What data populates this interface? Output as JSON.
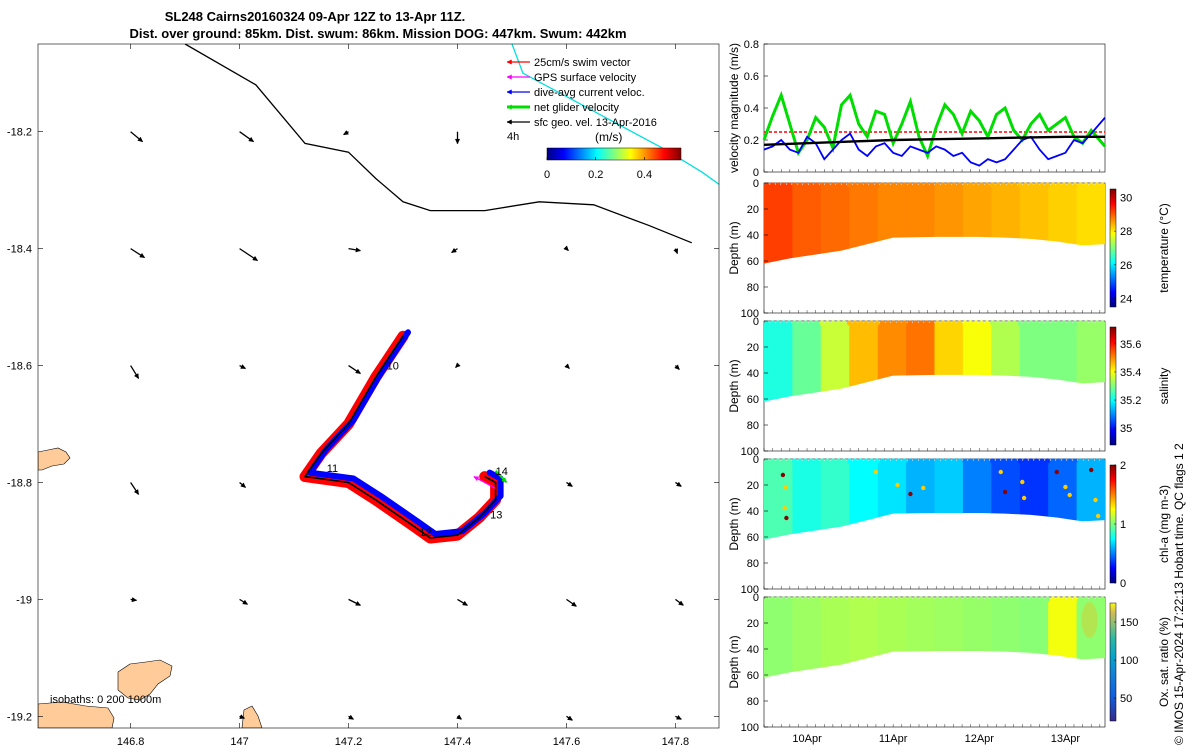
{
  "title": {
    "line1": "SL248 Cairns20160324 09-Apr 12Z to 13-Apr 11Z.",
    "line2": "Dist. over ground: 85km. Dist. swum: 86km. Mission DOG: 447km. Swum: 442km"
  },
  "footer_note": "© IMOS 15-Apr-2024 17:22:13 Hobart time. QC flags 1  2",
  "colors": {
    "swim": "#ff0000",
    "gps": "#ff00ff",
    "dive_avg": "#0000ff",
    "net": "#00dd00",
    "sfc": "#000000",
    "coast_fill": "#ffcc99",
    "iso0": "#000000",
    "iso1000": "#00e0e0"
  },
  "map": {
    "legend": [
      {
        "label": "25cm/s swim vector",
        "color": "#ff0000",
        "icon": "red-arrow-icon"
      },
      {
        "label": "GPS surface velocity",
        "color": "#ff00ff",
        "icon": "magenta-arrow-icon"
      },
      {
        "label": "dive-avg current veloc.",
        "color": "#0000ff",
        "icon": "blue-arrow-icon"
      },
      {
        "label": "net glider velocity",
        "color": "#00dd00",
        "icon": "green-arrow-icon"
      },
      {
        "label": "sfc geo. vel. 13-Apr-2016",
        "color": "#000000",
        "icon": "black-arrow-icon"
      }
    ],
    "legend_extra": "4h",
    "colorbar": {
      "label": "(m/s)",
      "ticks": [
        "0",
        "0.2",
        "0.4"
      ]
    },
    "isobaths_label": "isobaths: 0   200  1000m",
    "xlim": [
      146.63,
      147.88
    ],
    "ylim": [
      -19.22,
      -18.05
    ],
    "xticks": [
      146.8,
      147,
      147.2,
      147.4,
      147.6,
      147.8
    ],
    "xtick_labels": [
      "146.8",
      "147",
      "147.2",
      "147.4",
      "147.6",
      "147.8"
    ],
    "yticks": [
      -18.2,
      -18.4,
      -18.6,
      -18.8,
      -19,
      -19.2
    ],
    "ytick_labels": [
      "-18.2",
      "-18.4",
      "-18.6",
      "-18.8",
      "-19",
      "-19.2"
    ],
    "day_labels": [
      {
        "text": "10",
        "lon": 147.27,
        "lat": -18.6
      },
      {
        "text": "11",
        "lon": 147.16,
        "lat": -18.775
      },
      {
        "text": "12",
        "lon": 147.33,
        "lat": -18.885
      },
      {
        "text": "13",
        "lon": 147.46,
        "lat": -18.855
      },
      {
        "text": "14",
        "lon": 147.47,
        "lat": -18.78
      }
    ],
    "track": [
      [
        147.3,
        -18.55
      ],
      [
        147.25,
        -18.62
      ],
      [
        147.2,
        -18.7
      ],
      [
        147.18,
        -18.72
      ],
      [
        147.15,
        -18.75
      ],
      [
        147.12,
        -18.79
      ],
      [
        147.2,
        -18.8
      ],
      [
        147.25,
        -18.83
      ],
      [
        147.32,
        -18.875
      ],
      [
        147.35,
        -18.895
      ],
      [
        147.4,
        -18.89
      ],
      [
        147.44,
        -18.86
      ],
      [
        147.47,
        -18.83
      ],
      [
        147.47,
        -18.8
      ],
      [
        147.45,
        -18.79
      ]
    ],
    "iso0_contour": [
      [
        146.9,
        -18.05
      ],
      [
        147.03,
        -18.12
      ],
      [
        147.12,
        -18.22
      ],
      [
        147.2,
        -18.235
      ],
      [
        147.25,
        -18.28
      ],
      [
        147.3,
        -18.32
      ],
      [
        147.35,
        -18.335
      ],
      [
        147.45,
        -18.335
      ],
      [
        147.55,
        -18.32
      ],
      [
        147.65,
        -18.325
      ],
      [
        147.75,
        -18.36
      ],
      [
        147.83,
        -18.39
      ]
    ],
    "iso1000_contour": [
      [
        147.5,
        -18.05
      ],
      [
        147.52,
        -18.1
      ],
      [
        147.6,
        -18.14
      ],
      [
        147.7,
        -18.19
      ],
      [
        147.78,
        -18.23
      ],
      [
        147.85,
        -18.27
      ],
      [
        147.88,
        -18.29
      ]
    ],
    "geo_vectors": [
      {
        "lon": 146.8,
        "lat": -18.2,
        "u": 0.12,
        "v": -0.1
      },
      {
        "lon": 147.0,
        "lat": -18.2,
        "u": 0.14,
        "v": -0.1
      },
      {
        "lon": 147.2,
        "lat": -18.2,
        "u": -0.05,
        "v": -0.03
      },
      {
        "lon": 147.4,
        "lat": -18.2,
        "u": 0.0,
        "v": -0.12
      },
      {
        "lon": 146.8,
        "lat": -18.4,
        "u": 0.14,
        "v": -0.09
      },
      {
        "lon": 147.0,
        "lat": -18.4,
        "u": 0.18,
        "v": -0.12
      },
      {
        "lon": 147.2,
        "lat": -18.4,
        "u": 0.12,
        "v": -0.02
      },
      {
        "lon": 147.4,
        "lat": -18.4,
        "u": -0.06,
        "v": -0.04
      },
      {
        "lon": 147.6,
        "lat": -18.4,
        "u": 0.02,
        "v": -0.02
      },
      {
        "lon": 147.8,
        "lat": -18.4,
        "u": 0.02,
        "v": -0.05
      },
      {
        "lon": 146.8,
        "lat": -18.6,
        "u": 0.08,
        "v": -0.13
      },
      {
        "lon": 147.0,
        "lat": -18.6,
        "u": 0.06,
        "v": -0.03
      },
      {
        "lon": 147.2,
        "lat": -18.6,
        "u": 0.12,
        "v": -0.08
      },
      {
        "lon": 147.4,
        "lat": -18.6,
        "u": -0.02,
        "v": -0.02
      },
      {
        "lon": 147.6,
        "lat": -18.6,
        "u": 0.03,
        "v": -0.03
      },
      {
        "lon": 147.8,
        "lat": -18.6,
        "u": 0.04,
        "v": -0.04
      },
      {
        "lon": 146.8,
        "lat": -18.8,
        "u": 0.08,
        "v": -0.12
      },
      {
        "lon": 147.0,
        "lat": -18.8,
        "u": 0.06,
        "v": -0.05
      },
      {
        "lon": 147.2,
        "lat": -18.8,
        "u": 0.04,
        "v": -0.03
      },
      {
        "lon": 147.6,
        "lat": -18.8,
        "u": 0.06,
        "v": -0.04
      },
      {
        "lon": 147.8,
        "lat": -18.8,
        "u": 0.06,
        "v": -0.04
      },
      {
        "lon": 146.8,
        "lat": -19.0,
        "u": 0.06,
        "v": -0.01
      },
      {
        "lon": 147.0,
        "lat": -19.0,
        "u": 0.08,
        "v": -0.05
      },
      {
        "lon": 147.2,
        "lat": -19.0,
        "u": 0.12,
        "v": -0.06
      },
      {
        "lon": 147.4,
        "lat": -19.0,
        "u": 0.1,
        "v": -0.06
      },
      {
        "lon": 147.6,
        "lat": -19.0,
        "u": 0.1,
        "v": -0.07
      },
      {
        "lon": 147.8,
        "lat": -19.0,
        "u": 0.08,
        "v": -0.06
      },
      {
        "lon": 147.0,
        "lat": -19.2,
        "u": 0.05,
        "v": -0.02
      },
      {
        "lon": 147.2,
        "lat": -19.2,
        "u": 0.05,
        "v": -0.03
      },
      {
        "lon": 147.4,
        "lat": -19.2,
        "u": 0.04,
        "v": -0.03
      },
      {
        "lon": 147.6,
        "lat": -19.2,
        "u": 0.06,
        "v": -0.04
      },
      {
        "lon": 147.8,
        "lat": -19.2,
        "u": 0.06,
        "v": -0.03
      }
    ]
  },
  "chart_data": [
    {
      "type": "line",
      "ylabel": "velocity magnitude (m/s)",
      "ylim": [
        0,
        0.8
      ],
      "yticks": [
        "0",
        "0.2",
        "0.4",
        "0.6",
        "0.8"
      ],
      "x_days": [
        9.5,
        13.46
      ],
      "series": [
        {
          "key": "swim",
          "color": "#ff0000",
          "style": "dashed",
          "x": [
            9.5,
            13.46
          ],
          "y": [
            0.25,
            0.25
          ]
        },
        {
          "key": "net",
          "color": "#00dd00",
          "x": [
            9.5,
            9.6,
            9.7,
            9.8,
            9.9,
            10.0,
            10.1,
            10.2,
            10.3,
            10.4,
            10.5,
            10.6,
            10.7,
            10.8,
            10.9,
            11.0,
            11.1,
            11.2,
            11.3,
            11.4,
            11.5,
            11.6,
            11.7,
            11.8,
            11.9,
            12.0,
            12.1,
            12.2,
            12.3,
            12.4,
            12.5,
            12.6,
            12.7,
            12.8,
            12.9,
            13.0,
            13.1,
            13.2,
            13.3,
            13.46
          ],
          "y": [
            0.2,
            0.35,
            0.48,
            0.3,
            0.12,
            0.2,
            0.34,
            0.28,
            0.15,
            0.42,
            0.48,
            0.3,
            0.22,
            0.38,
            0.36,
            0.18,
            0.3,
            0.44,
            0.22,
            0.1,
            0.28,
            0.42,
            0.36,
            0.24,
            0.38,
            0.32,
            0.22,
            0.36,
            0.4,
            0.26,
            0.2,
            0.3,
            0.36,
            0.26,
            0.3,
            0.34,
            0.22,
            0.18,
            0.26,
            0.16
          ]
        },
        {
          "key": "dive",
          "color": "#0000ff",
          "x": [
            9.5,
            9.6,
            9.7,
            9.8,
            9.9,
            10.0,
            10.1,
            10.2,
            10.3,
            10.4,
            10.5,
            10.6,
            10.7,
            10.8,
            10.9,
            11.0,
            11.1,
            11.2,
            11.3,
            11.4,
            11.5,
            11.6,
            11.7,
            11.8,
            11.9,
            12.0,
            12.1,
            12.2,
            12.3,
            12.4,
            12.5,
            12.6,
            12.7,
            12.8,
            12.9,
            13.0,
            13.1,
            13.2,
            13.3,
            13.46
          ],
          "y": [
            0.14,
            0.16,
            0.2,
            0.14,
            0.12,
            0.22,
            0.18,
            0.08,
            0.14,
            0.2,
            0.24,
            0.14,
            0.1,
            0.16,
            0.18,
            0.12,
            0.1,
            0.16,
            0.14,
            0.12,
            0.16,
            0.14,
            0.1,
            0.12,
            0.06,
            0.04,
            0.08,
            0.06,
            0.08,
            0.14,
            0.2,
            0.22,
            0.14,
            0.08,
            0.1,
            0.12,
            0.2,
            0.18,
            0.24,
            0.34
          ]
        },
        {
          "key": "sfc",
          "color": "#000000",
          "x": [
            9.5,
            10.0,
            10.5,
            11.0,
            11.5,
            12.0,
            12.5,
            13.0,
            13.46
          ],
          "y": [
            0.17,
            0.18,
            0.19,
            0.2,
            0.205,
            0.21,
            0.215,
            0.22,
            0.22
          ]
        }
      ]
    },
    {
      "type": "heatmap",
      "key": "temp",
      "ylabel": "Depth (m)",
      "clabel": "temperature (°C)",
      "clim": [
        23.5,
        30.5
      ],
      "cticks": [
        "24",
        "26",
        "28",
        "30"
      ],
      "yticks": [
        "0",
        "20",
        "40",
        "60",
        "80",
        "100"
      ],
      "values": [
        29.2,
        29.0,
        28.9,
        28.8,
        28.7,
        28.7,
        28.6,
        28.5,
        28.4,
        28.3,
        28.2,
        28.1
      ]
    },
    {
      "type": "heatmap",
      "key": "sal",
      "ylabel": "Depth (m)",
      "clabel": "salinity",
      "clim": [
        34.88,
        35.72
      ],
      "cticks": [
        "35",
        "35.2",
        "35.4",
        "35.6"
      ],
      "yticks": [
        "0",
        "20",
        "40",
        "60",
        "80",
        "100"
      ],
      "values": [
        35.22,
        35.28,
        35.36,
        35.46,
        35.5,
        35.52,
        35.44,
        35.4,
        35.34,
        35.3,
        35.3,
        35.32
      ]
    },
    {
      "type": "heatmap",
      "key": "chl",
      "ylabel": "Depth (m)",
      "clabel": "chl-a (mg m-3)",
      "clim": [
        0,
        2
      ],
      "cticks": [
        "0",
        "1",
        "2"
      ],
      "yticks": [
        "0",
        "20",
        "40",
        "60",
        "80",
        "100"
      ],
      "values": [
        0.9,
        0.8,
        0.85,
        0.75,
        0.7,
        0.6,
        0.65,
        0.5,
        0.4,
        0.35,
        0.45,
        0.6
      ]
    },
    {
      "type": "heatmap",
      "key": "ox",
      "ylabel": "Depth (m)",
      "clabel": "Ox. sat. ratio (%)",
      "clim": [
        20,
        175
      ],
      "cticks": [
        "50",
        "100",
        "150"
      ],
      "yticks": [
        "0",
        "20",
        "40",
        "60",
        "80",
        "100"
      ],
      "values": [
        100,
        102,
        104,
        105,
        104,
        103,
        102,
        101,
        100,
        99,
        115,
        100
      ]
    },
    {
      "type": "axis",
      "key": "time",
      "xtick_labels": [
        "10Apr",
        "11Apr",
        "12Apr",
        "13Apr"
      ],
      "xticks_days": [
        10,
        11,
        12,
        13
      ]
    }
  ]
}
